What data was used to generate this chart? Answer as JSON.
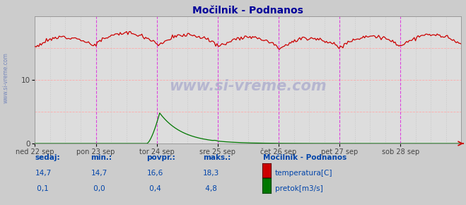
{
  "title": "Močilnik - Podnanos",
  "bg_color": "#cccccc",
  "plot_bg_color": "#dddddd",
  "grid_color_h": "#ffaaaa",
  "grid_color_v_major": "#dd44dd",
  "grid_color_v_minor": "#bbbbbb",
  "temp_color": "#cc0000",
  "flow_color": "#007700",
  "title_color": "#000099",
  "text_color": "#0044aa",
  "watermark_color": "#9999bb",
  "x_labels": [
    "ned 22 sep",
    "pon 23 sep",
    "tor 24 sep",
    "sre 25 sep",
    "čet 26 sep",
    "pet 27 sep",
    "sob 28 sep"
  ],
  "ylim": [
    0,
    20
  ],
  "yticks": [
    0,
    10
  ],
  "temp_min": 14.7,
  "temp_max": 18.3,
  "temp_avg": 16.6,
  "temp_cur": 14.7,
  "flow_min": 0.0,
  "flow_max": 4.8,
  "flow_avg": 0.4,
  "flow_cur": 0.1,
  "label_sedaj": "sedaj:",
  "label_min": "min.:",
  "label_povpr": "povpr.:",
  "label_maks": "maks.:",
  "label_station": "Močilnik - Podnanos",
  "label_temp": "temperatura[C]",
  "label_flow": "pretok[m3/s]",
  "watermark": "www.si-vreme.com",
  "n_points": 336,
  "n_days": 7
}
